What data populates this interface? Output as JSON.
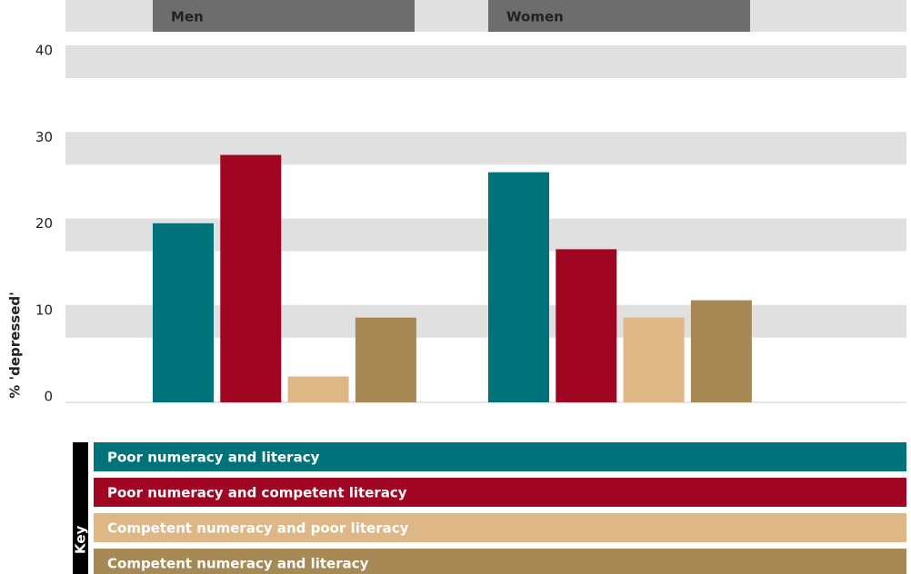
{
  "chart_data": {
    "type": "bar",
    "ylabel": "% 'depressed'",
    "categories": [
      "Men",
      "Women"
    ],
    "series": [
      {
        "name": "Poor numeracy and literacy",
        "color": "#00737a",
        "values": [
          20.7,
          26.6
        ]
      },
      {
        "name": "Poor numeracy and competent literacy",
        "color": "#a00622",
        "values": [
          28.6,
          17.7
        ]
      },
      {
        "name": "Competent numeracy and poor literacy",
        "color": "#ddb886",
        "values": [
          3.0,
          9.8
        ]
      },
      {
        "name": "Competent numeracy and literacy",
        "color": "#a68955",
        "values": [
          9.8,
          11.8
        ]
      }
    ],
    "ylim": [
      0,
      40
    ],
    "yticks": [
      0,
      10,
      20,
      30,
      40
    ],
    "grid": true,
    "legend_title": "Key"
  }
}
